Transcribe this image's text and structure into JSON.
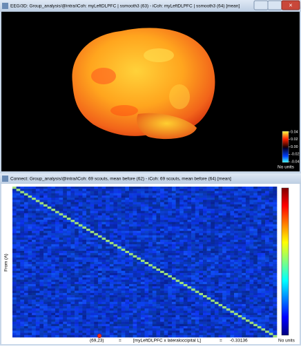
{
  "top_window": {
    "title": "EEG/3D: Group_analysis/@intra/iCoh: myLeftDLPFC | ssmooth3 (63) - iCoh: myLeftDLPFC | ssmooth3 (64) [mean]",
    "colorbar": {
      "ticks": [
        "0.04",
        "0.02",
        "0.00",
        "-0.02",
        "-0.04"
      ],
      "units": "No units"
    }
  },
  "bottom_window": {
    "title": "Connect: Group_analysis/@intra/iCoh: 69 scouts, mean before (62) - iCoh: 69 scouts, mean before (64) [mean]",
    "y_label": "From (A)",
    "colorbar_units": "No units",
    "status": {
      "coords": "(69,23)",
      "eq1": "=",
      "pair": "[myLeftDLPFC x lateraloccipital L]",
      "eq2": "=",
      "value": "-0.33136"
    }
  }
}
